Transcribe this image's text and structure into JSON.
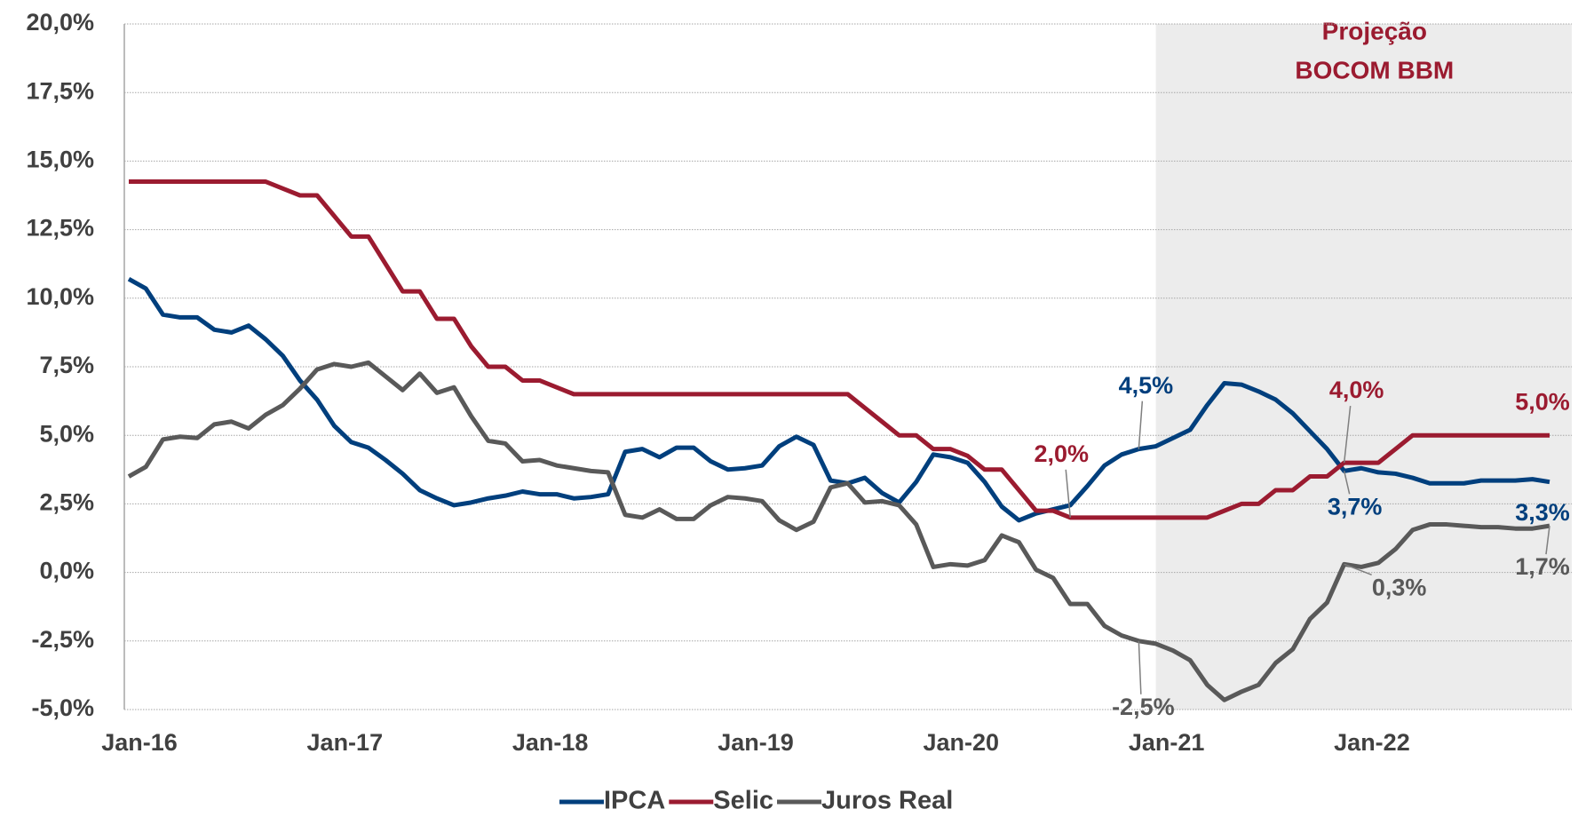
{
  "chart_data": {
    "type": "line",
    "projection": {
      "label": [
        "Projeção",
        "BOCOM BBM"
      ],
      "start": "Jan-21",
      "color": "#ececec",
      "label_color": "#9b1b30"
    },
    "categories": [
      "Jan-16",
      null,
      null,
      null,
      null,
      null,
      null,
      null,
      null,
      null,
      null,
      null,
      "Jan-17",
      null,
      null,
      null,
      null,
      null,
      null,
      null,
      null,
      null,
      null,
      null,
      "Jan-18",
      null,
      null,
      null,
      null,
      null,
      null,
      null,
      null,
      null,
      null,
      null,
      "Jan-19",
      null,
      null,
      null,
      null,
      null,
      null,
      null,
      null,
      null,
      null,
      null,
      "Jan-20",
      null,
      null,
      null,
      null,
      null,
      null,
      null,
      null,
      null,
      null,
      null,
      "Jan-21",
      null,
      null,
      null,
      null,
      null,
      null,
      null,
      null,
      null,
      null,
      null,
      "Jan-22",
      null,
      null,
      null,
      null,
      null,
      null,
      null,
      null,
      null,
      null,
      null
    ],
    "ylim": [
      -5,
      20
    ],
    "yticks": [
      {
        "value": -5,
        "label": "-5,0%"
      },
      {
        "value": -2.5,
        "label": "-2,5%"
      },
      {
        "value": 0,
        "label": "0,0%"
      },
      {
        "value": 2.5,
        "label": "2,5%"
      },
      {
        "value": 5,
        "label": "5,0%"
      },
      {
        "value": 7.5,
        "label": "7,5%"
      },
      {
        "value": 10,
        "label": "10,0%"
      },
      {
        "value": 12.5,
        "label": "12,5%"
      },
      {
        "value": 15,
        "label": "15,0%"
      },
      {
        "value": 17.5,
        "label": "17,5%"
      },
      {
        "value": 20,
        "label": "20,0%"
      }
    ],
    "grid": true,
    "legend": "bottom",
    "series": [
      {
        "name": "IPCA",
        "color": "#003f7d",
        "values": [
          10.7,
          10.35,
          9.4,
          9.3,
          9.3,
          8.85,
          8.75,
          9.0,
          8.5,
          7.9,
          7.0,
          6.3,
          5.35,
          4.75,
          4.55,
          4.1,
          3.6,
          3.0,
          2.7,
          2.45,
          2.55,
          2.7,
          2.8,
          2.95,
          2.85,
          2.85,
          2.7,
          2.75,
          2.85,
          4.4,
          4.5,
          4.2,
          4.55,
          4.55,
          4.05,
          3.75,
          3.8,
          3.9,
          4.6,
          4.95,
          4.65,
          3.35,
          3.25,
          3.45,
          2.9,
          2.55,
          3.3,
          4.3,
          4.2,
          4.0,
          3.3,
          2.4,
          1.9,
          2.15,
          2.3,
          2.45,
          3.15,
          3.9,
          4.3,
          4.5,
          4.6,
          4.9,
          5.2,
          6.1,
          6.9,
          6.85,
          6.6,
          6.3,
          5.8,
          5.15,
          4.5,
          3.7,
          3.8,
          3.65,
          3.6,
          3.45,
          3.25,
          3.25,
          3.25,
          3.35,
          3.35,
          3.35,
          3.4,
          3.3
        ],
        "value_labels": {
          "59": "4,5%",
          "71": "3,7%",
          "83": "3,3%"
        }
      },
      {
        "name": "Selic",
        "color": "#9b1b30",
        "values": [
          14.25,
          14.25,
          14.25,
          14.25,
          14.25,
          14.25,
          14.25,
          14.25,
          14.25,
          14.0,
          13.75,
          13.75,
          13.0,
          12.25,
          12.25,
          11.25,
          10.25,
          10.25,
          9.25,
          9.25,
          8.25,
          7.5,
          7.5,
          7.0,
          7.0,
          6.75,
          6.5,
          6.5,
          6.5,
          6.5,
          6.5,
          6.5,
          6.5,
          6.5,
          6.5,
          6.5,
          6.5,
          6.5,
          6.5,
          6.5,
          6.5,
          6.5,
          6.5,
          6.0,
          5.5,
          5.0,
          5.0,
          4.5,
          4.5,
          4.25,
          3.75,
          3.75,
          3.0,
          2.25,
          2.25,
          2.0,
          2.0,
          2.0,
          2.0,
          2.0,
          2.0,
          2.0,
          2.0,
          2.0,
          2.25,
          2.5,
          2.5,
          3.0,
          3.0,
          3.5,
          3.5,
          4.0,
          4.0,
          4.0,
          4.5,
          5.0,
          5.0,
          5.0,
          5.0,
          5.0,
          5.0,
          5.0,
          5.0,
          5.0
        ],
        "value_labels": {
          "55": "2,0%",
          "71": "4,0%",
          "83": "5,0%"
        }
      },
      {
        "name": "Juros Real",
        "color": "#595959",
        "values": [
          3.5,
          3.85,
          4.85,
          4.95,
          4.9,
          5.4,
          5.5,
          5.25,
          5.75,
          6.1,
          6.7,
          7.4,
          7.6,
          7.5,
          7.65,
          7.15,
          6.65,
          7.25,
          6.55,
          6.75,
          5.7,
          4.8,
          4.7,
          4.05,
          4.1,
          3.9,
          3.8,
          3.7,
          3.65,
          2.1,
          2.0,
          2.3,
          1.95,
          1.95,
          2.45,
          2.75,
          2.7,
          2.6,
          1.9,
          1.55,
          1.85,
          3.1,
          3.25,
          2.55,
          2.6,
          2.45,
          1.75,
          0.2,
          0.3,
          0.25,
          0.45,
          1.35,
          1.1,
          0.1,
          -0.2,
          -1.15,
          -1.15,
          -1.95,
          -2.3,
          -2.5,
          -2.6,
          -2.85,
          -3.2,
          -4.1,
          -4.65,
          -4.35,
          -4.1,
          -3.3,
          -2.8,
          -1.7,
          -1.1,
          0.3,
          0.2,
          0.35,
          0.85,
          1.55,
          1.75,
          1.75,
          1.7,
          1.65,
          1.65,
          1.6,
          1.6,
          1.7
        ],
        "value_labels": {
          "59": "-2,5%",
          "71": "0,3%",
          "83": "1,7%"
        }
      }
    ]
  }
}
